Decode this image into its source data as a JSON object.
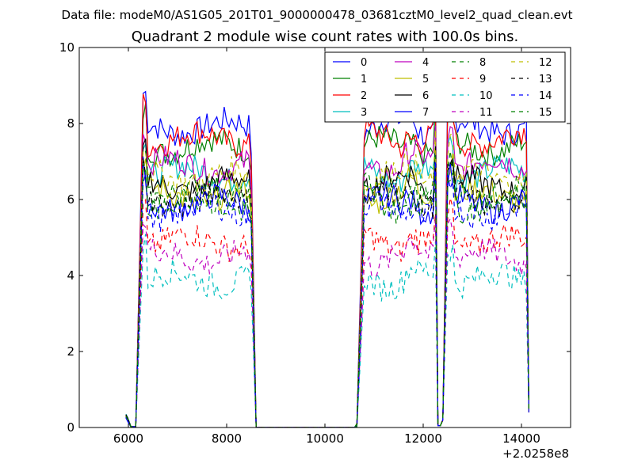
{
  "figure": {
    "suptitle": "Data file: modeM0/AS1G05_201T01_9000000478_03681cztM0_level2_quad_clean.evt"
  },
  "chart_data": {
    "type": "line",
    "title": "Quadrant 2 module wise count rates with 100.0s bins.",
    "xlabel": "",
    "ylabel": "",
    "xlim": [
      5000,
      15000
    ],
    "ylim": [
      0,
      10
    ],
    "x_offset_label": "+2.0258e8",
    "x_ticks": [
      6000,
      8000,
      10000,
      12000,
      14000
    ],
    "y_ticks": [
      0,
      2,
      4,
      6,
      8,
      10
    ],
    "grid": false,
    "legend": {
      "placement": "top-right",
      "columns": 4
    },
    "segments": [
      {
        "start": 5950,
        "end": 6200,
        "kind": "rise"
      },
      {
        "start": 6300,
        "end": 8500,
        "kind": "plateau"
      },
      {
        "start": 8500,
        "end": 8650,
        "kind": "fall"
      },
      {
        "start": 8650,
        "end": 10650,
        "kind": "gap"
      },
      {
        "start": 10650,
        "end": 12250,
        "kind": "plateau"
      },
      {
        "start": 12250,
        "end": 12450,
        "kind": "dip"
      },
      {
        "start": 12550,
        "end": 14200,
        "kind": "plateau"
      }
    ],
    "series": [
      {
        "name": "0",
        "color": "#0000ff",
        "dash": false,
        "level": 7.9
      },
      {
        "name": "1",
        "color": "#008000",
        "dash": false,
        "level": 7.4
      },
      {
        "name": "2",
        "color": "#ff0000",
        "dash": false,
        "level": 7.6
      },
      {
        "name": "3",
        "color": "#00bfbf",
        "dash": false,
        "level": 6.7
      },
      {
        "name": "4",
        "color": "#bf00bf",
        "dash": false,
        "level": 6.9
      },
      {
        "name": "5",
        "color": "#bfbf00",
        "dash": false,
        "level": 6.1
      },
      {
        "name": "6",
        "color": "#000000",
        "dash": false,
        "level": 6.4
      },
      {
        "name": "7",
        "color": "#0000ff",
        "dash": false,
        "level": 5.9
      },
      {
        "name": "8",
        "color": "#008000",
        "dash": true,
        "level": 6.2
      },
      {
        "name": "9",
        "color": "#ff0000",
        "dash": true,
        "level": 4.9
      },
      {
        "name": "10",
        "color": "#00bfbf",
        "dash": true,
        "level": 3.9
      },
      {
        "name": "11",
        "color": "#bf00bf",
        "dash": true,
        "level": 4.5
      },
      {
        "name": "12",
        "color": "#bfbf00",
        "dash": true,
        "level": 6.6
      },
      {
        "name": "13",
        "color": "#000000",
        "dash": true,
        "level": 6.0
      },
      {
        "name": "14",
        "color": "#0000ff",
        "dash": true,
        "level": 5.7
      },
      {
        "name": "15",
        "color": "#008000",
        "dash": true,
        "level": 5.9
      }
    ]
  }
}
